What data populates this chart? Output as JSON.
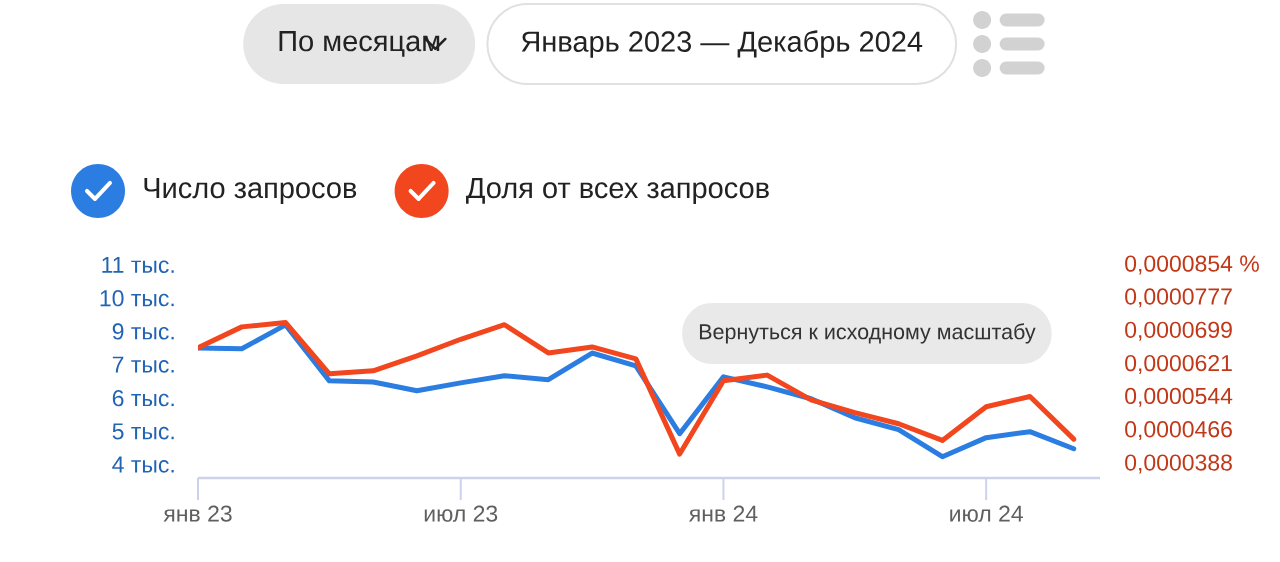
{
  "chart_data": {
    "type": "line",
    "annotations": [
      "По месяцам",
      "Январь 2023 — Декабрь 2024",
      "Вернуться к исходному масштабу"
    ],
    "x": [
      "2023-01",
      "2023-02",
      "2023-03",
      "2023-04",
      "2023-05",
      "2023-06",
      "2023-07",
      "2023-08",
      "2023-09",
      "2023-10",
      "2023-11",
      "2023-12",
      "2024-01",
      "2024-02",
      "2024-03",
      "2024-04",
      "2024-05",
      "2024-06",
      "2024-07",
      "2024-08",
      "2024-09"
    ],
    "xlim": [
      "2023-01",
      "2024-09-19"
    ],
    "xticks": [
      {
        "value": "2023-01",
        "label": "янв 23"
      },
      {
        "value": "2023-07",
        "label": "июл 23"
      },
      {
        "value": "2024-01",
        "label": "янв 24"
      },
      {
        "value": "2024-07",
        "label": "июл 24"
      }
    ],
    "ylim": [
      3.5,
      11
    ],
    "yticks": [
      {
        "value": 3.97,
        "label": "4 тыс."
      },
      {
        "value": 5.14,
        "label": "5 тыс."
      },
      {
        "value": 6.31,
        "label": "6 тыс."
      },
      {
        "value": 7.49,
        "label": "7 тыс."
      },
      {
        "value": 8.66,
        "label": "9 тыс."
      },
      {
        "value": 9.83,
        "label": "10 тыс."
      },
      {
        "value": 11,
        "label": "11 тыс."
      }
    ],
    "y2lim": [
      3.55e-05,
      8.54e-05
    ],
    "y2ticks": [
      {
        "value": 3.88e-05,
        "label": "0,0000388"
      },
      {
        "value": 4.66e-05,
        "label": "0,0000466"
      },
      {
        "value": 5.44e-05,
        "label": "0,0000544"
      },
      {
        "value": 6.21e-05,
        "label": "0,0000621"
      },
      {
        "value": 6.99e-05,
        "label": "0,0000699"
      },
      {
        "value": 7.77e-05,
        "label": "0,0000777"
      },
      {
        "value": 8.54e-05,
        "label": "0,0000854 %"
      }
    ],
    "series": [
      {
        "name": "Число запросов",
        "color": "#2b7de1",
        "values": [
          8.08,
          8.05,
          8.89,
          6.92,
          6.88,
          6.57,
          6.85,
          7.1,
          6.96,
          7.9,
          7.45,
          5.06,
          7.06,
          6.71,
          6.29,
          5.62,
          5.2,
          4.25,
          4.92,
          5.13,
          4.53
        ]
      },
      {
        "name": "Доля от всех запросов",
        "color": "#f2461f",
        "axis": "y2",
        "values": [
          6.6e-05,
          7.09e-05,
          7.19e-05,
          5.99e-05,
          6.06e-05,
          6.41e-05,
          6.8e-05,
          7.14e-05,
          6.48e-05,
          6.62e-05,
          6.34e-05,
          4.11e-05,
          5.83e-05,
          5.96e-05,
          5.38e-05,
          5.08e-05,
          4.82e-05,
          4.43e-05,
          5.22e-05,
          5.46e-05,
          4.46e-05
        ]
      }
    ],
    "legend": "top left",
    "line_style": "solid"
  }
}
